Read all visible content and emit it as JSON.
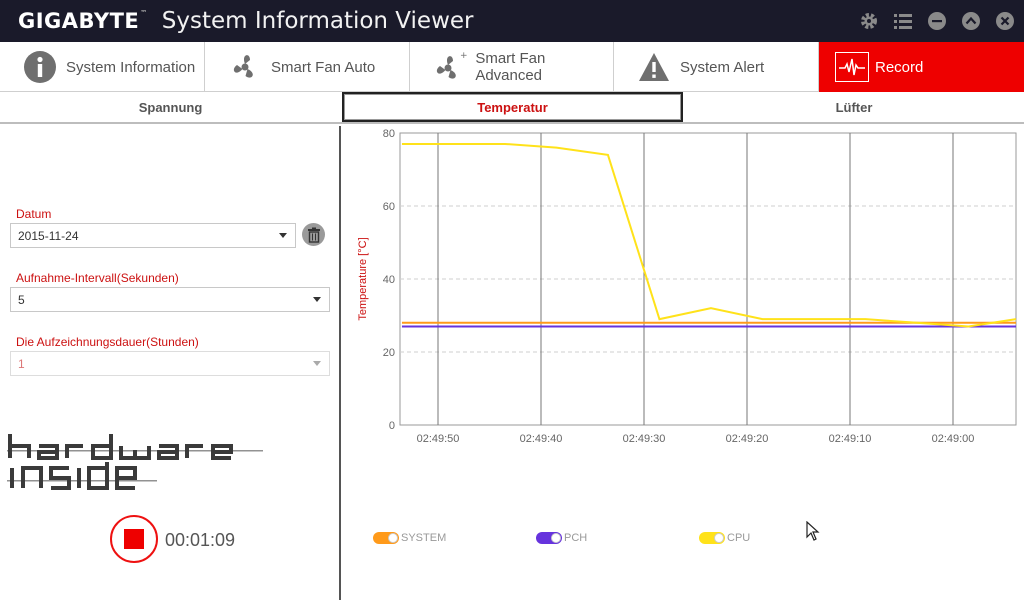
{
  "titlebar": {
    "brand": "GIGABYTE",
    "brand_mark": "™",
    "title": "System Information Viewer",
    "icons": [
      "gear-icon",
      "list-icon",
      "minimize-icon",
      "collapse-icon",
      "close-icon"
    ]
  },
  "nav": {
    "tabs": [
      {
        "label": "System Information",
        "icon": "info-icon"
      },
      {
        "label": "Smart Fan Auto",
        "icon": "fan-icon"
      },
      {
        "label": "Smart Fan Advanced",
        "icon": "fan-plus-icon"
      },
      {
        "label": "System Alert",
        "icon": "warning-icon"
      },
      {
        "label": "Record",
        "icon": "pulse-icon",
        "active": true
      }
    ]
  },
  "subtabs": [
    {
      "label": "Spannung"
    },
    {
      "label": "Temperatur",
      "active": true
    },
    {
      "label": "Lüfter"
    }
  ],
  "form": {
    "date_label": "Datum",
    "date_value": "2015-11-24",
    "interval_label": "Aufnahme-Intervall(Sekunden)",
    "interval_value": "5",
    "duration_label": "Die Aufzeichnungsdauer(Stunden)",
    "duration_value": "1"
  },
  "logo_text": "hardware inside",
  "record": {
    "elapsed": "00:01:09"
  },
  "colors": {
    "accent": "#ee0000",
    "system": "#ff9a1a",
    "pch": "#6633dd",
    "cpu": "#ffe21a"
  },
  "chart_data": {
    "type": "line",
    "ylabel": "Temperature [°C]",
    "ylim": [
      0,
      80
    ],
    "yticks": [
      0,
      20,
      40,
      60,
      80
    ],
    "xlabels": [
      "02:49:50",
      "02:49:40",
      "02:49:30",
      "02:49:20",
      "02:49:10",
      "02:49:00"
    ],
    "x_direction": "time decreasing left to right",
    "grid": true,
    "legend_placement": "bottom",
    "series": [
      {
        "name": "SYSTEM",
        "color": "#ff9a1a",
        "x": [
          -0.35,
          5.8
        ],
        "values": [
          28,
          28
        ]
      },
      {
        "name": "PCH",
        "color": "#6633dd",
        "x": [
          -0.35,
          5.8
        ],
        "values": [
          27,
          27
        ]
      },
      {
        "name": "CPU",
        "color": "#ffe21a",
        "x": [
          -0.35,
          0.65,
          1.15,
          1.65,
          2.15,
          2.65,
          3.15,
          3.65,
          4.15,
          4.65,
          5.15,
          5.8
        ],
        "values": [
          77,
          77,
          76,
          74,
          29,
          32,
          29,
          29,
          29,
          28,
          27,
          29
        ]
      }
    ]
  }
}
